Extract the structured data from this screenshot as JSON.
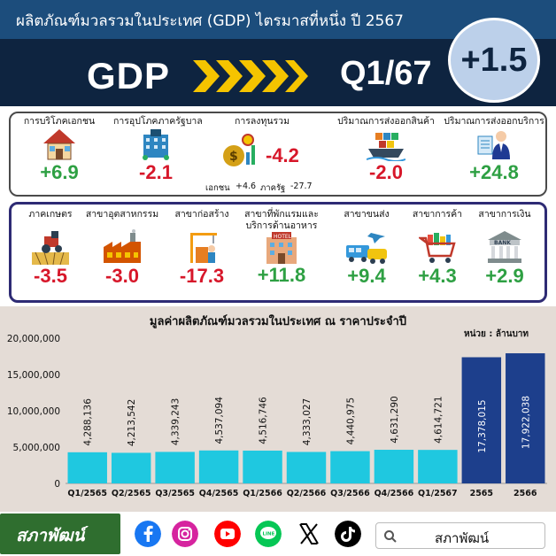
{
  "header": {
    "title": "ผลิตภัณฑ์มวลรวมในประเทศ (GDP) ไตรมาสที่หนึ่ง ปี 2567",
    "gdp_label": "GDP",
    "quarter": "Q1/67",
    "headline_growth": "+1.5"
  },
  "demand_components": [
    {
      "label": "การบริโภคเอกชน",
      "value": "+6.9",
      "icon": "house-icon"
    },
    {
      "label": "การอุปโภคภาครัฐบาล",
      "value": "-2.1",
      "icon": "government-building-icon"
    },
    {
      "label": "การลงทุนรวม",
      "value": "-4.2",
      "icon": "investment-icon",
      "private_label": "เอกชน",
      "private_value": "+4.6",
      "public_label": "ภาครัฐ",
      "public_value": "-27.7"
    },
    {
      "label": "ปริมาณการส่งออกสินค้า",
      "value": "-2.0",
      "icon": "cargo-ship-icon"
    },
    {
      "label": "ปริมาณการส่งออกบริการ",
      "value": "+24.8",
      "icon": "service-worker-icon"
    }
  ],
  "sectors": [
    {
      "label": "ภาคเกษตร",
      "value": "-3.5",
      "icon": "tractor-icon"
    },
    {
      "label": "สาขาอุตสาหกรรม",
      "value": "-3.0",
      "icon": "factory-icon"
    },
    {
      "label": "สาขาก่อสร้าง",
      "value": "-17.3",
      "icon": "construction-icon"
    },
    {
      "label": "สาขาที่พักแรมและ",
      "label2": "บริการด้านอาหาร",
      "value": "+11.8",
      "icon": "hotel-icon"
    },
    {
      "label": "สาขาขนส่ง",
      "value": "+9.4",
      "icon": "transport-icon"
    },
    {
      "label": "สาขาการค้า",
      "value": "+4.3",
      "icon": "shopping-cart-icon"
    },
    {
      "label": "สาขาการเงิน",
      "value": "+2.9",
      "icon": "bank-icon"
    }
  ],
  "chart_data": {
    "type": "bar",
    "title": "มูลค่าผลิตภัณฑ์มวลรวมในประเทศ ณ ราคาประจำปี",
    "unit": "หน่วย : ล้านบาท",
    "categories": [
      "Q1/2565",
      "Q2/2565",
      "Q3/2565",
      "Q4/2565",
      "Q1/2566",
      "Q2/2566",
      "Q3/2566",
      "Q4/2566",
      "Q1/2567",
      "2565",
      "2566"
    ],
    "values": [
      4288136,
      4213542,
      4339243,
      4537094,
      4516746,
      4333027,
      4440975,
      4631290,
      4614721,
      17378015,
      17922038
    ],
    "value_labels": [
      "4,288,136",
      "4,213,542",
      "4,339,243",
      "4,537,094",
      "4,516,746",
      "4,333,027",
      "4,440,975",
      "4,631,290",
      "4,614,721",
      "17,378,015",
      "17,922,038"
    ],
    "yticks": [
      0,
      5000000,
      10000000,
      15000000,
      20000000
    ],
    "ytick_labels": [
      "0",
      "5,000,000",
      "10,000,000",
      "15,000,000",
      "20,000,000"
    ],
    "ylim": [
      0,
      20000000
    ],
    "colors": {
      "quarterly": "#1fc8e0",
      "annual": "#1d3f8c"
    },
    "grid": false
  },
  "footer": {
    "logo_text": "สภาพัฒน์",
    "search_text": "สภาพัฒน์",
    "socials": [
      "facebook-icon",
      "instagram-icon",
      "youtube-icon",
      "line-icon",
      "x-icon",
      "tiktok-icon"
    ]
  }
}
